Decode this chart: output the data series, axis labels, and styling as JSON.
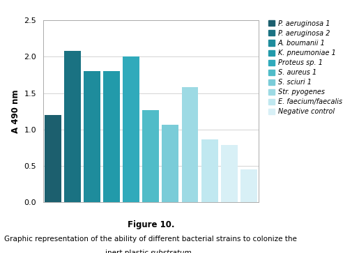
{
  "bar_heights": [
    1.2,
    1.2,
    2.08,
    1.8,
    1.8,
    2.0,
    1.27,
    1.27,
    1.07,
    1.58,
    0.86,
    0.79,
    0.45
  ],
  "bar_heights_10": [
    1.2,
    2.08,
    1.8,
    1.8,
    2.0,
    1.27,
    1.07,
    1.58,
    0.86,
    0.79,
    0.45
  ],
  "legend_labels": [
    "P. aeruginosa 1",
    "P. aeruginosa 2",
    "A. boumanii 1",
    "K. pneumoniae 1",
    "Proteus sp. 1",
    "S. aureus 1",
    "S. sciuri 1",
    "Str. pyogenes",
    "E. faecium/faecalis",
    "Negative control"
  ],
  "legend_colors": [
    "#1c5f6e",
    "#1a7282",
    "#1e8c9c",
    "#229aaa",
    "#30aabb",
    "#50bcc8",
    "#7accd8",
    "#9ddae4",
    "#c0e8f0",
    "#d8f0f6"
  ],
  "ylabel": "A 490 nm",
  "ylim": [
    0,
    2.5
  ],
  "yticks": [
    0,
    0.5,
    1.0,
    1.5,
    2.0,
    2.5
  ],
  "background_color": "#ffffff",
  "frame_color": "#cccccc",
  "grid_color": "#cccccc"
}
